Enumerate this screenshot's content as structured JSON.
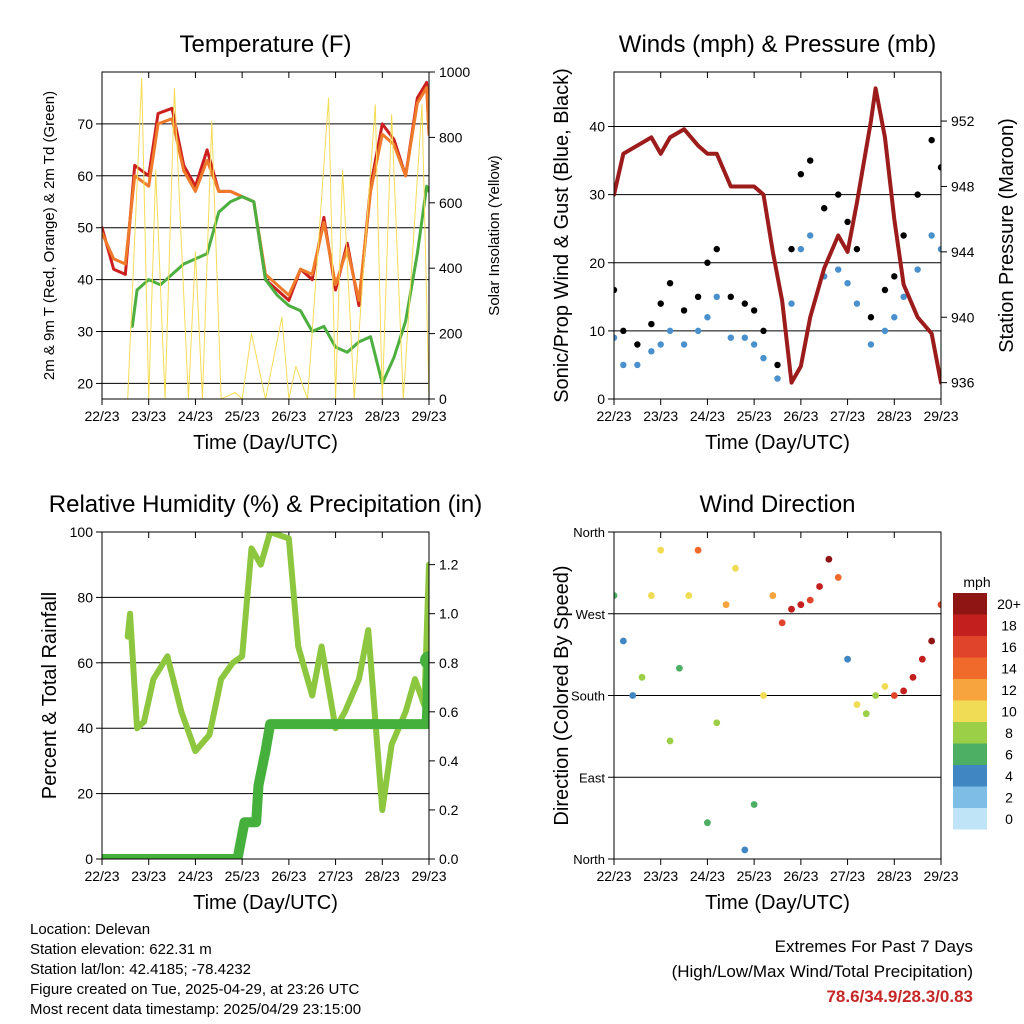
{
  "colors": {
    "t2m": "#cc1f1f",
    "t9m": "#ef7b2a",
    "td": "#4caf3f",
    "solar": "#f5dc55",
    "gust": "#000000",
    "wind": "#4a90cc",
    "pressure": "#9c1c1c",
    "rh": "#8dc63f",
    "precip": "#45b03c",
    "extremes": "#c62828"
  },
  "chart_data": [
    {
      "id": "temperature",
      "type": "line",
      "title": "Temperature (F)",
      "xlabel": "Time (Day/UTC)",
      "ylabel": "2m & 9m T (Red, Orange) & 2m Td (Green)",
      "ylabel_right": "Solar Insolation (Yellow)",
      "x_ticks": [
        "22/23",
        "23/23",
        "24/23",
        "25/23",
        "26/23",
        "27/23",
        "28/23",
        "29/23"
      ],
      "xlim": [
        0,
        7
      ],
      "ylim": [
        17,
        80
      ],
      "y_ticks": [
        20,
        30,
        40,
        50,
        60,
        70
      ],
      "ylim_right": [
        0,
        1000
      ],
      "y_ticks_right": [
        0,
        200,
        400,
        600,
        800,
        1000
      ],
      "grid": true,
      "series": [
        {
          "name": "2m T",
          "color": "#cc1f1f",
          "x": [
            0,
            0.25,
            0.5,
            0.7,
            1.0,
            1.2,
            1.5,
            1.75,
            2.0,
            2.25,
            2.5,
            2.75,
            3.0,
            3.25,
            3.5,
            3.75,
            4.0,
            4.25,
            4.5,
            4.75,
            5.0,
            5.25,
            5.5,
            5.75,
            6.0,
            6.25,
            6.5,
            6.75,
            6.95,
            7.0
          ],
          "y": [
            50,
            42,
            41,
            62,
            60,
            72,
            73,
            62,
            58,
            65,
            57,
            57,
            56,
            55,
            40,
            38,
            36,
            42,
            40,
            52,
            38,
            47,
            35,
            58,
            70,
            67,
            60,
            75,
            78,
            68
          ]
        },
        {
          "name": "9m T",
          "color": "#ef7b2a",
          "x": [
            0,
            0.25,
            0.5,
            0.7,
            1.0,
            1.2,
            1.5,
            1.75,
            2.0,
            2.25,
            2.5,
            2.75,
            3.0,
            3.25,
            3.5,
            3.75,
            4.0,
            4.25,
            4.5,
            4.75,
            5.0,
            5.25,
            5.5,
            5.75,
            6.0,
            6.25,
            6.5,
            6.75,
            6.95,
            7.0
          ],
          "y": [
            49,
            44,
            43,
            60,
            58,
            70,
            71,
            61,
            57,
            63,
            57,
            57,
            56,
            55,
            41,
            39,
            37,
            42,
            41,
            51,
            39,
            46,
            36,
            57,
            68,
            66,
            60,
            74,
            77,
            68
          ]
        },
        {
          "name": "2m Td",
          "color": "#4caf3f",
          "x": [
            0.65,
            0.75,
            1.0,
            1.25,
            1.5,
            1.75,
            2.0,
            2.25,
            2.5,
            2.75,
            3.0,
            3.25,
            3.5,
            3.75,
            4.0,
            4.25,
            4.5,
            4.75,
            5.0,
            5.25,
            5.5,
            5.75,
            6.0,
            6.25,
            6.5,
            6.75,
            6.95,
            7.0
          ],
          "y": [
            31,
            38,
            40,
            39,
            41,
            43,
            44,
            45,
            53,
            55,
            56,
            55,
            40,
            37,
            35,
            34,
            30,
            31,
            27,
            26,
            28,
            29,
            20,
            25,
            32,
            45,
            58,
            57
          ]
        },
        {
          "name": "Solar Insolation",
          "color": "#f5dc55",
          "axis": "right",
          "x": [
            0.55,
            0.85,
            1.0,
            1.15,
            1.35,
            1.55,
            1.85,
            2.0,
            2.15,
            2.35,
            2.55,
            2.85,
            3.0,
            3.2,
            3.5,
            3.85,
            4.0,
            4.15,
            4.4,
            4.85,
            5.0,
            5.15,
            5.4,
            5.85,
            6.0,
            6.2,
            6.45,
            6.85,
            7.0
          ],
          "y": [
            0,
            980,
            0,
            700,
            0,
            950,
            0,
            450,
            0,
            850,
            0,
            20,
            0,
            200,
            0,
            250,
            0,
            100,
            0,
            920,
            0,
            700,
            0,
            900,
            0,
            870,
            0,
            900,
            0
          ]
        }
      ]
    },
    {
      "id": "winds",
      "type": "scatter",
      "title": "Winds (mph) & Pressure (mb)",
      "xlabel": "Time (Day/UTC)",
      "ylabel": "Sonic/Prop Wind & Gust (Blue, Black)",
      "ylabel_right": "Station Pressure (Maroon)",
      "x_ticks": [
        "22/23",
        "23/23",
        "24/23",
        "25/23",
        "26/23",
        "27/23",
        "28/23",
        "29/23"
      ],
      "xlim": [
        0,
        7
      ],
      "ylim": [
        0,
        48
      ],
      "y_ticks": [
        0,
        10,
        20,
        30,
        40
      ],
      "ylim_right": [
        935,
        955
      ],
      "y_ticks_right": [
        936,
        940,
        944,
        948,
        952
      ],
      "grid": true,
      "series": [
        {
          "name": "Gust",
          "color": "#000000",
          "x": [
            0,
            0.2,
            0.5,
            0.8,
            1.0,
            1.2,
            1.5,
            1.8,
            2.0,
            2.2,
            2.5,
            2.8,
            3.0,
            3.2,
            3.5,
            3.8,
            4.0,
            4.2,
            4.5,
            4.8,
            5.0,
            5.2,
            5.5,
            5.8,
            6.0,
            6.2,
            6.5,
            6.8,
            7.0
          ],
          "y": [
            16,
            10,
            8,
            11,
            14,
            17,
            13,
            15,
            20,
            22,
            15,
            14,
            13,
            10,
            5,
            22,
            33,
            35,
            28,
            30,
            26,
            22,
            12,
            16,
            18,
            24,
            30,
            38,
            34
          ]
        },
        {
          "name": "Wind",
          "color": "#4a90cc",
          "x": [
            0,
            0.2,
            0.5,
            0.8,
            1.0,
            1.2,
            1.5,
            1.8,
            2.0,
            2.2,
            2.5,
            2.8,
            3.0,
            3.2,
            3.5,
            3.8,
            4.0,
            4.2,
            4.5,
            4.8,
            5.0,
            5.2,
            5.5,
            5.8,
            6.0,
            6.2,
            6.5,
            6.8,
            7.0
          ],
          "y": [
            9,
            5,
            5,
            7,
            8,
            10,
            8,
            10,
            12,
            15,
            9,
            9,
            8,
            6,
            3,
            14,
            22,
            24,
            18,
            19,
            17,
            14,
            8,
            10,
            12,
            15,
            19,
            24,
            22
          ]
        },
        {
          "name": "Station Pressure",
          "color": "#9c1c1c",
          "axis": "right",
          "x": [
            0,
            0.2,
            0.5,
            0.8,
            1.0,
            1.2,
            1.5,
            1.8,
            2.0,
            2.2,
            2.5,
            2.8,
            3.0,
            3.2,
            3.4,
            3.6,
            3.8,
            4.0,
            4.2,
            4.5,
            4.8,
            5.0,
            5.2,
            5.5,
            5.6,
            5.8,
            6.0,
            6.2,
            6.5,
            6.8,
            7.0
          ],
          "y": [
            947.5,
            950,
            950.5,
            951,
            950,
            951,
            951.5,
            950.5,
            950,
            950,
            948,
            948,
            948,
            947.5,
            944,
            941,
            936,
            937,
            940,
            943,
            945,
            944,
            947,
            952,
            954,
            951,
            946,
            942,
            940,
            939,
            936
          ]
        }
      ]
    },
    {
      "id": "humidity",
      "type": "line",
      "title": "Relative Humidity (%) & Precipitation (in)",
      "xlabel": "Time (Day/UTC)",
      "ylabel": "Percent & Total Rainfall",
      "x_ticks": [
        "22/23",
        "23/23",
        "24/23",
        "25/23",
        "26/23",
        "27/23",
        "28/23",
        "29/23"
      ],
      "xlim": [
        0,
        7
      ],
      "ylim": [
        0,
        100
      ],
      "y_ticks": [
        0,
        20,
        40,
        60,
        80,
        100
      ],
      "ylim_right": [
        0,
        1.333
      ],
      "y_ticks_right": [
        "0.0",
        "0.2",
        "0.4",
        "0.6",
        "0.8",
        "1.0",
        "1.2"
      ],
      "grid": true,
      "series": [
        {
          "name": "Relative Humidity",
          "color": "#8dc63f",
          "x": [
            0.55,
            0.6,
            0.75,
            0.9,
            1.1,
            1.4,
            1.7,
            2.0,
            2.3,
            2.55,
            2.8,
            3.0,
            3.2,
            3.4,
            3.6,
            3.8,
            4.0,
            4.2,
            4.5,
            4.7,
            5.0,
            5.2,
            5.5,
            5.7,
            6.0,
            6.2,
            6.5,
            6.7,
            6.9,
            7.0
          ],
          "y": [
            68,
            75,
            40,
            42,
            55,
            62,
            45,
            33,
            38,
            55,
            60,
            62,
            95,
            90,
            100,
            99,
            98,
            65,
            50,
            65,
            40,
            45,
            55,
            70,
            15,
            35,
            45,
            55,
            47,
            90
          ]
        },
        {
          "name": "Total Precipitation",
          "color": "#45b03c",
          "axis": "right",
          "x": [
            0,
            1.0,
            2.0,
            2.9,
            3.05,
            3.1,
            3.3,
            3.35,
            3.5,
            3.6,
            4.0,
            5.0,
            6.0,
            6.95,
            7.0
          ],
          "y": [
            0,
            0,
            0,
            0,
            0.15,
            0.15,
            0.15,
            0.3,
            0.44,
            0.55,
            0.55,
            0.55,
            0.55,
            0.55,
            0.81
          ]
        }
      ]
    },
    {
      "id": "direction",
      "type": "scatter",
      "title": "Wind Direction",
      "xlabel": "Time (Day/UTC)",
      "ylabel": "Direction (Colored By Speed)",
      "x_ticks": [
        "22/23",
        "23/23",
        "24/23",
        "25/23",
        "26/23",
        "27/23",
        "28/23",
        "29/23"
      ],
      "xlim": [
        0,
        7
      ],
      "ylim": [
        0,
        360
      ],
      "y_ticks": [
        "North",
        "East",
        "South",
        "West",
        "North"
      ],
      "grid": true,
      "legend": {
        "title": "mph",
        "position": "right",
        "labels": [
          "20+",
          "18",
          "16",
          "14",
          "12",
          "10",
          "8",
          "6",
          "4",
          "2",
          "0"
        ],
        "colors": [
          "#8f1414",
          "#c41f1f",
          "#e0442a",
          "#f06a2c",
          "#f7a43e",
          "#f0dc55",
          "#9ccf48",
          "#4caf63",
          "#3f86c2",
          "#7ebde6",
          "#bfe4f7"
        ]
      },
      "x": [
        0,
        0.2,
        0.4,
        0.6,
        0.8,
        1.0,
        1.2,
        1.4,
        1.6,
        1.8,
        2.0,
        2.2,
        2.4,
        2.6,
        2.8,
        3.0,
        3.2,
        3.4,
        3.6,
        3.8,
        4.0,
        4.2,
        4.4,
        4.6,
        4.8,
        5.0,
        5.2,
        5.4,
        5.6,
        5.8,
        6.0,
        6.2,
        6.4,
        6.6,
        6.8,
        7.0
      ],
      "y": [
        290,
        240,
        180,
        200,
        290,
        340,
        130,
        210,
        290,
        340,
        40,
        150,
        280,
        320,
        10,
        60,
        180,
        290,
        260,
        275,
        280,
        285,
        300,
        330,
        310,
        220,
        170,
        160,
        180,
        190,
        180,
        185,
        200,
        220,
        240,
        280
      ],
      "speed": [
        6,
        4,
        4,
        8,
        10,
        10,
        8,
        6,
        10,
        14,
        6,
        8,
        12,
        10,
        4,
        6,
        10,
        12,
        16,
        18,
        18,
        16,
        18,
        20,
        14,
        4,
        10,
        8,
        8,
        10,
        16,
        18,
        18,
        18,
        20,
        16
      ]
    }
  ],
  "footer": {
    "location": "Location: Delevan",
    "elevation": "Station elevation: 622.31 m",
    "latlon": "Station lat/lon: 42.4185; -78.4232",
    "created": "Figure created on Tue, 2025-04-29, at 23:26 UTC",
    "recent": "Most recent data timestamp: 2025/04/29 23:15:00"
  },
  "extremes": {
    "title": "Extremes For Past 7 Days",
    "subtitle": "(High/Low/Max Wind/Total Precipitation)",
    "values": "78.6/34.9/28.3/0.83"
  }
}
